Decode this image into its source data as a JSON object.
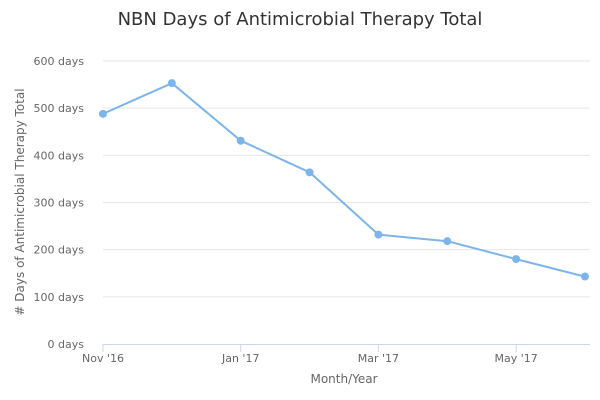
{
  "chart_data": {
    "type": "line",
    "title": "NBN Days of Antimicrobial Therapy Total",
    "xlabel": "Month/Year",
    "ylabel": "# Days of Antimicrobial Therapy Total",
    "x": [
      "Nov '16",
      "Dec '16",
      "Jan '17",
      "Feb '17",
      "Mar '17",
      "Apr '17",
      "May '17",
      "Jun '17"
    ],
    "x_tick_labels": [
      "Nov '16",
      "Jan '17",
      "Mar '17",
      "May '17"
    ],
    "y_tick_labels": [
      "0 days",
      "100 days",
      "200 days",
      "300 days",
      "400 days",
      "500 days",
      "600 days"
    ],
    "ylim": [
      0,
      600
    ],
    "y_tick_step": 100,
    "grid": true,
    "series": [
      {
        "values": [
          488,
          553,
          431,
          364,
          232,
          218,
          180,
          143
        ],
        "color": "#7cb5ec"
      }
    ]
  }
}
